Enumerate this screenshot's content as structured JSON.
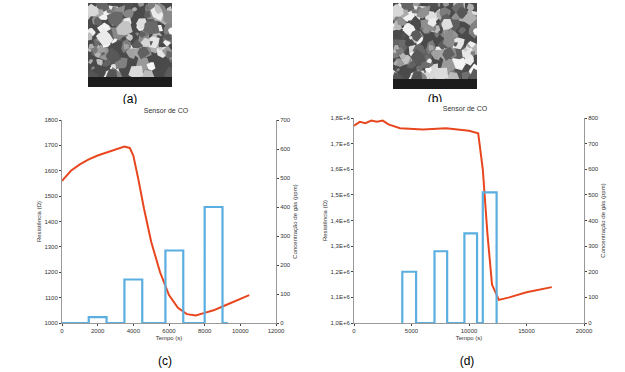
{
  "panel_labels": [
    "(a)",
    "(b)",
    "(c)",
    "(d)"
  ],
  "chart_data": [
    {
      "type": "line",
      "title": "Sensor de CO",
      "x_label": "Tempo (s)",
      "y_label": "Resistência (Ω)",
      "y2_label": "Concentração de gás (ppm)",
      "xlim": [
        0,
        12000
      ],
      "xticks": [
        0,
        2000,
        4000,
        6000,
        8000,
        10000,
        12000
      ],
      "ylim": [
        1000,
        1800
      ],
      "yticks": [
        1000,
        1100,
        1200,
        1300,
        1400,
        1500,
        1600,
        1700,
        1800
      ],
      "y2lim": [
        0,
        700
      ],
      "y2ticks": [
        0,
        100,
        200,
        300,
        400,
        500,
        600,
        700
      ],
      "grid": false,
      "series": [
        {
          "color": "#e8461e",
          "axis": "y",
          "x": [
            0,
            500,
            1000,
            1500,
            2000,
            2500,
            3000,
            3500,
            3800,
            4000,
            4300,
            4600,
            5000,
            5500,
            6000,
            6500,
            7000,
            7500,
            8000,
            8500,
            9000,
            9500,
            10000,
            10500
          ],
          "values": [
            1560,
            1600,
            1625,
            1645,
            1660,
            1672,
            1685,
            1695,
            1690,
            1660,
            1560,
            1450,
            1320,
            1200,
            1110,
            1060,
            1035,
            1030,
            1040,
            1050,
            1065,
            1080,
            1095,
            1110
          ]
        },
        {
          "color": "#5aaee0",
          "axis": "y2",
          "x": [
            0,
            1500,
            1500,
            2500,
            2500,
            3500,
            3500,
            4500,
            4500,
            5800,
            5800,
            6800,
            6800,
            8000,
            8000,
            9000,
            9000,
            9300
          ],
          "values": [
            0,
            0,
            20,
            20,
            0,
            0,
            150,
            150,
            0,
            0,
            250,
            250,
            0,
            0,
            400,
            400,
            0,
            0
          ]
        }
      ]
    },
    {
      "type": "line",
      "title": "Sensor de CO",
      "x_label": "Tempo (s)",
      "y_label": "Resistência (Ω)",
      "y2_label": "Concentração de gás (ppm)",
      "xlim": [
        0,
        20000
      ],
      "xticks": [
        0,
        5000,
        10000,
        15000,
        20000
      ],
      "ylim": [
        1000000,
        1800000
      ],
      "yticks": [
        {
          "value": 1000000,
          "label": "1,0E+6"
        },
        {
          "value": 1100000,
          "label": "1,1E+6"
        },
        {
          "value": 1200000,
          "label": "1,2E+6"
        },
        {
          "value": 1300000,
          "label": "1,3E+6"
        },
        {
          "value": 1400000,
          "label": "1,4E+6"
        },
        {
          "value": 1500000,
          "label": "1,5E+6"
        },
        {
          "value": 1600000,
          "label": "1,6E+6"
        },
        {
          "value": 1700000,
          "label": "1,7E+6"
        },
        {
          "value": 1800000,
          "label": "1,8E+6"
        }
      ],
      "y2lim": [
        0,
        800
      ],
      "y2ticks": [
        0,
        100,
        200,
        300,
        400,
        500,
        600,
        700,
        800
      ],
      "grid": false,
      "series": [
        {
          "color": "#e8461e",
          "axis": "y",
          "x": [
            0,
            500,
            1000,
            1500,
            2000,
            2500,
            3000,
            4000,
            6000,
            8000,
            9000,
            10000,
            10800,
            11200,
            11600,
            12000,
            12600,
            13500,
            15000,
            17200
          ],
          "values": [
            1770000,
            1785000,
            1780000,
            1790000,
            1785000,
            1790000,
            1775000,
            1760000,
            1755000,
            1760000,
            1755000,
            1750000,
            1740000,
            1600000,
            1350000,
            1150000,
            1090000,
            1100000,
            1120000,
            1140000
          ]
        },
        {
          "color": "#5aaee0",
          "axis": "y2",
          "x": [
            4200,
            4200,
            5400,
            5400,
            7000,
            7000,
            8100,
            8100,
            9600,
            9600,
            10700,
            10700,
            11200,
            11200,
            12400,
            12400
          ],
          "values": [
            0,
            200,
            200,
            0,
            0,
            280,
            280,
            0,
            0,
            350,
            350,
            0,
            0,
            510,
            510,
            0
          ]
        }
      ]
    }
  ]
}
